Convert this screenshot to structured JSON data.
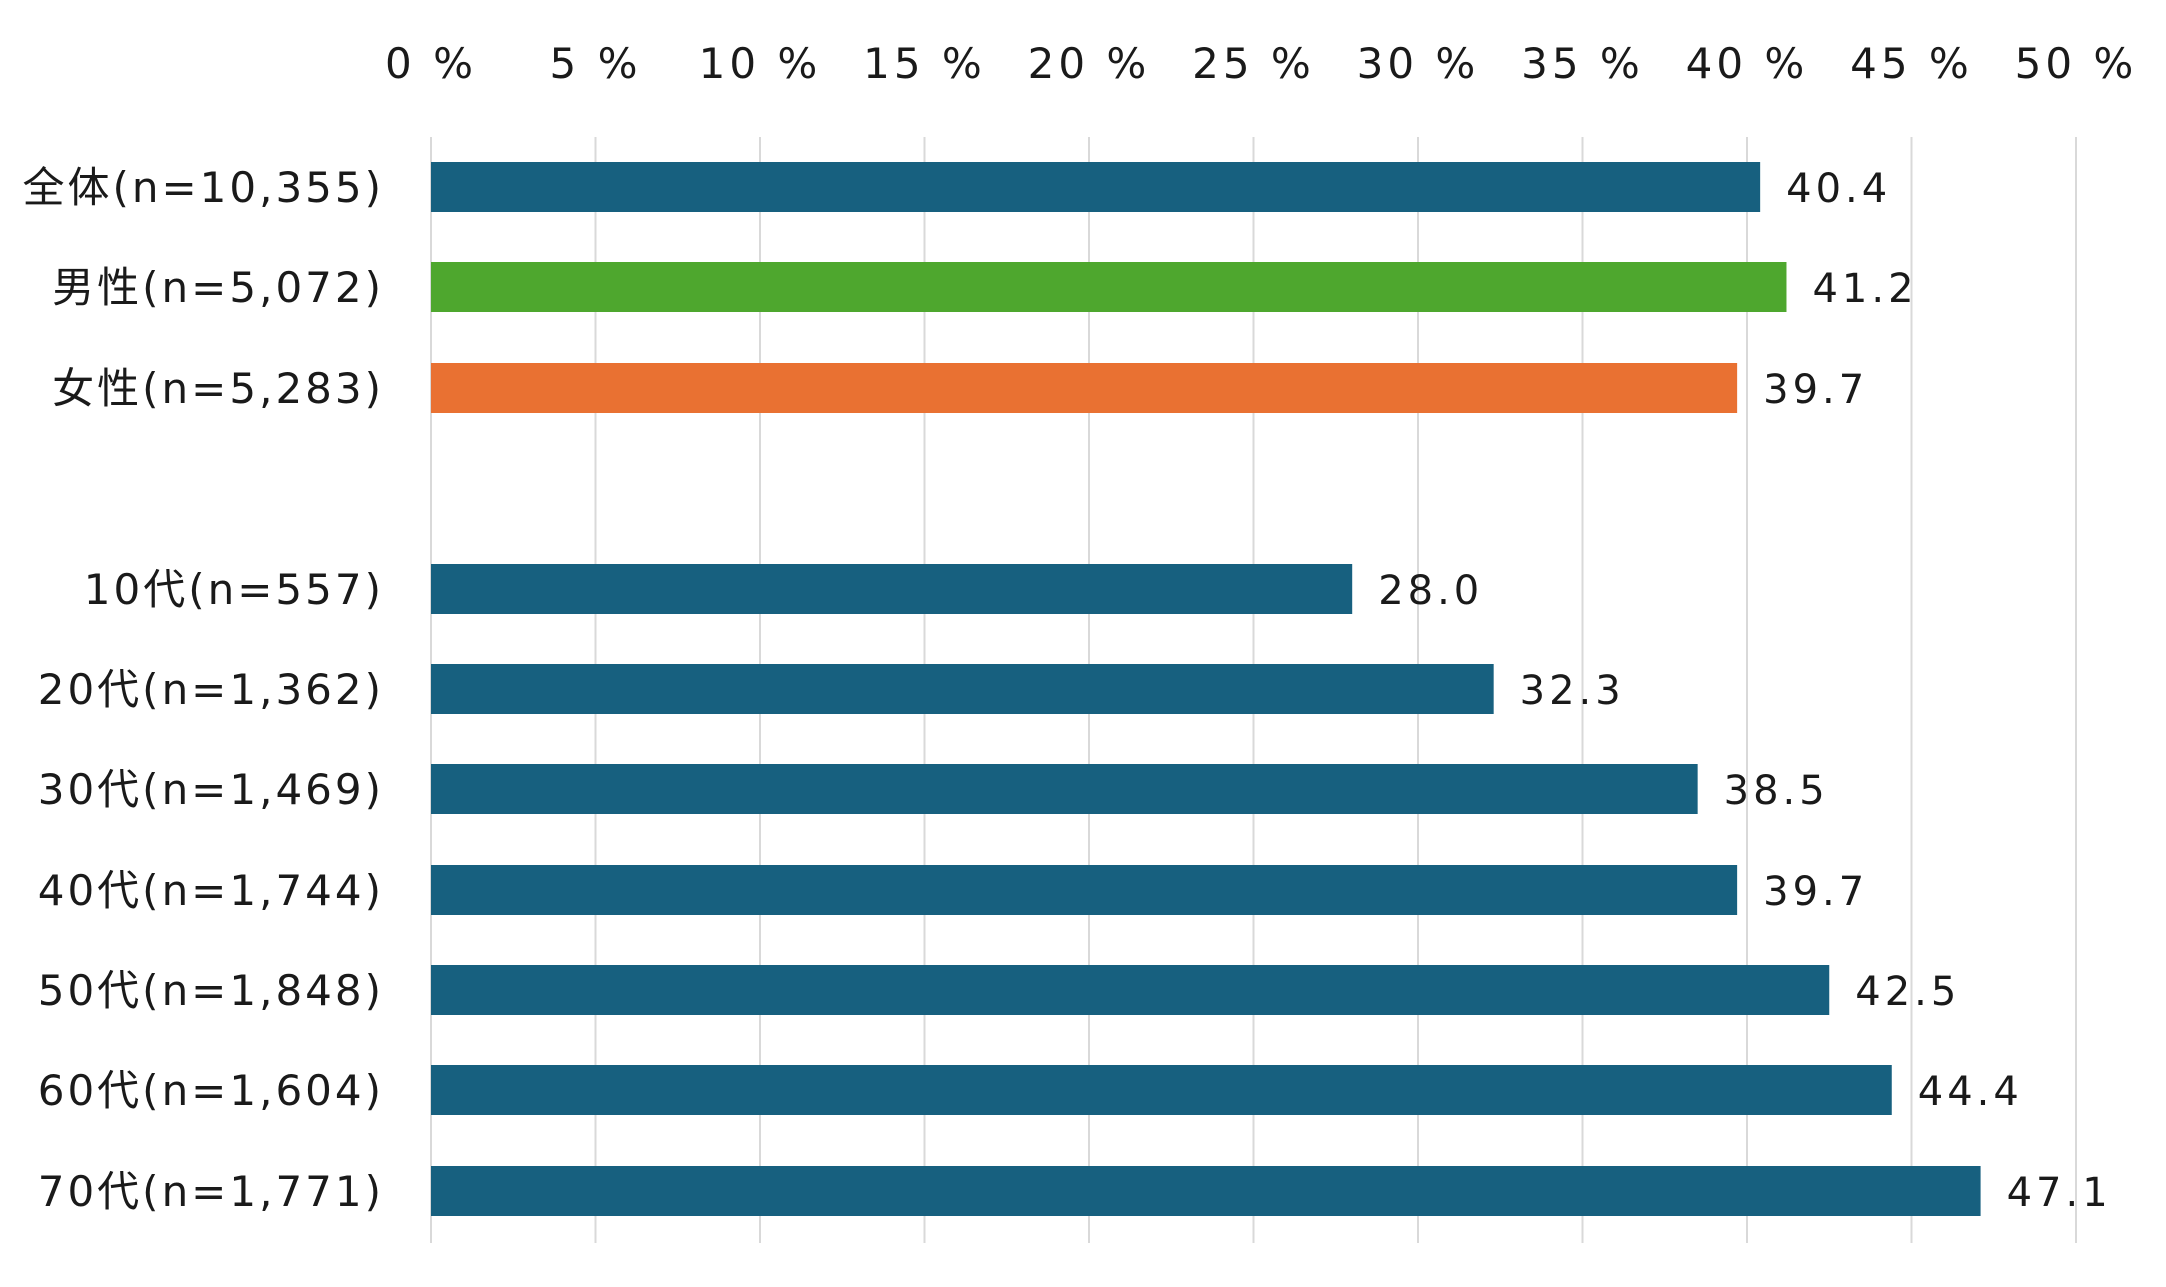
{
  "chart_data": {
    "type": "bar",
    "orientation": "horizontal",
    "xlim": [
      0,
      50
    ],
    "tick_values": [
      0,
      5,
      10,
      15,
      20,
      25,
      30,
      35,
      40,
      45,
      50
    ],
    "tick_labels": [
      "0 %",
      "5 %",
      "10 %",
      "15 %",
      "20 %",
      "25 %",
      "30 %",
      "35 %",
      "40 %",
      "45 %",
      "50 %"
    ],
    "axis_position": "top",
    "grid": true,
    "categories": [
      "全体(n=10,355)",
      "男性(n=5,072)",
      "女性(n=5,283)",
      "10代(n=557)",
      "20代(n=1,362)",
      "30代(n=1,469)",
      "40代(n=1,744)",
      "50代(n=1,848)",
      "60代(n=1,604)",
      "70代(n=1,771)"
    ],
    "values": [
      40.4,
      41.2,
      39.7,
      28.0,
      32.3,
      38.5,
      39.7,
      42.5,
      44.4,
      47.1
    ],
    "value_labels": [
      "40.4",
      "41.2",
      "39.7",
      "28.0",
      "32.3",
      "38.5",
      "39.7",
      "42.5",
      "44.4",
      "47.1"
    ],
    "colors": [
      "#17607f",
      "#4ea72e",
      "#e97132",
      "#17607f",
      "#17607f",
      "#17607f",
      "#17607f",
      "#17607f",
      "#17607f",
      "#17607f"
    ]
  }
}
